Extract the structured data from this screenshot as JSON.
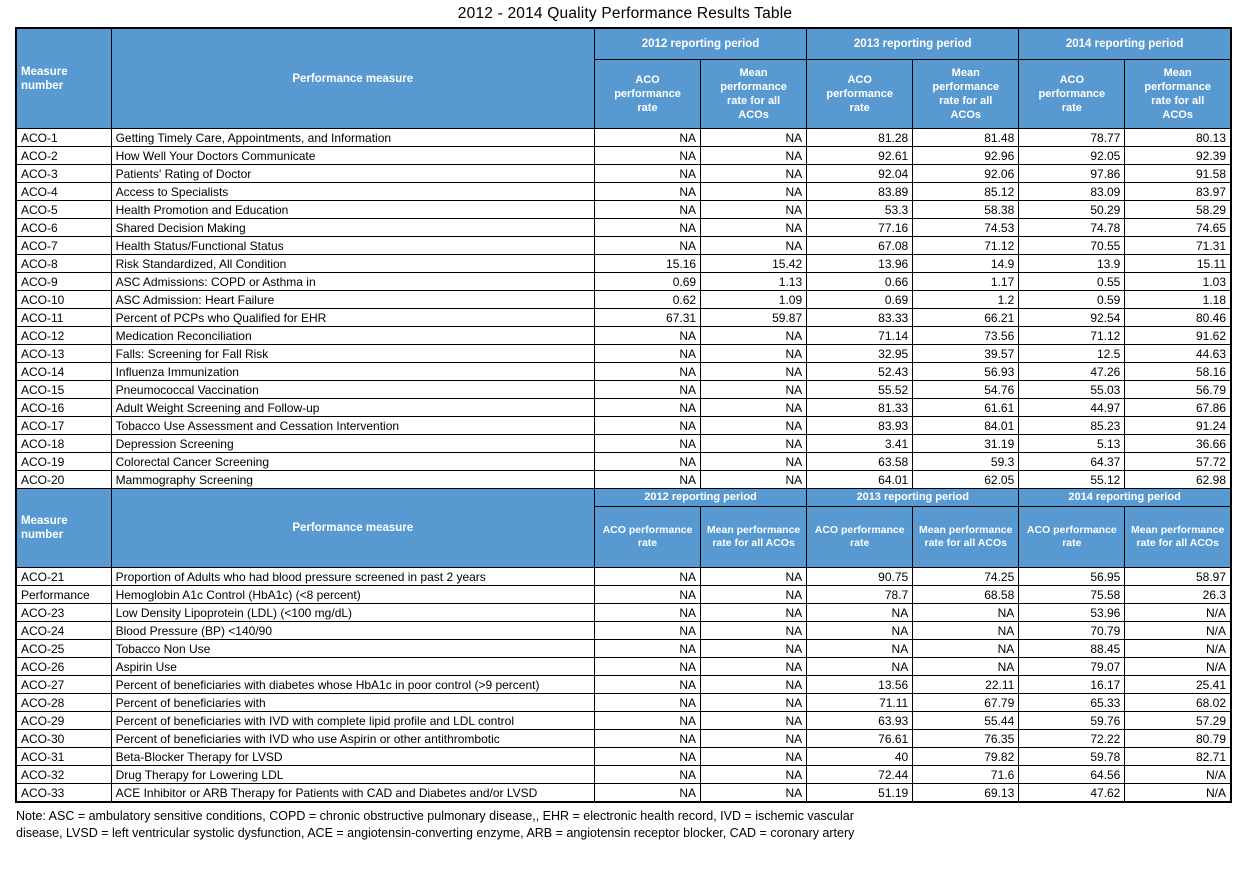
{
  "title": "2012 - 2014 Quality Performance Results Table",
  "colors": {
    "header_bg": "#5899d2",
    "header_text": "#ffffff",
    "border": "#000000"
  },
  "table": {
    "headers": {
      "measure_number": "Measure number",
      "performance_measure": "Performance measure",
      "periods": [
        "2012 reporting period",
        "2013 reporting period",
        "2014 reporting period"
      ],
      "sub_columns": [
        "ACO performance rate",
        "Mean performance rate for all ACOs"
      ]
    },
    "section1_rows": [
      {
        "number": "ACO-1",
        "measure": "Getting Timely Care, Appointments, and Information",
        "values": [
          "NA",
          "NA",
          "81.28",
          "81.48",
          "78.77",
          "80.13"
        ]
      },
      {
        "number": "ACO-2",
        "measure": "How Well Your Doctors Communicate",
        "values": [
          "NA",
          "NA",
          "92.61",
          "92.96",
          "92.05",
          "92.39"
        ]
      },
      {
        "number": "ACO-3",
        "measure": "Patients' Rating of Doctor",
        "values": [
          "NA",
          "NA",
          "92.04",
          "92.06",
          "97.86",
          "91.58"
        ]
      },
      {
        "number": "ACO-4",
        "measure": "Access to Specialists",
        "values": [
          "NA",
          "NA",
          "83.89",
          "85.12",
          "83.09",
          "83.97"
        ]
      },
      {
        "number": "ACO-5",
        "measure": "Health Promotion and Education",
        "values": [
          "NA",
          "NA",
          "53.3",
          "58.38",
          "50.29",
          "58.29"
        ]
      },
      {
        "number": "ACO-6",
        "measure": "Shared Decision Making",
        "values": [
          "NA",
          "NA",
          "77.16",
          "74.53",
          "74.78",
          "74.65"
        ]
      },
      {
        "number": "ACO-7",
        "measure": "Health Status/Functional Status",
        "values": [
          "NA",
          "NA",
          "67.08",
          "71.12",
          "70.55",
          "71.31"
        ]
      },
      {
        "number": "ACO-8",
        "measure": "Risk Standardized, All Condition",
        "values": [
          "15.16",
          "15.42",
          "13.96",
          "14.9",
          "13.9",
          "15.11"
        ]
      },
      {
        "number": "ACO-9",
        "measure": "ASC Admissions: COPD or Asthma in",
        "values": [
          "0.69",
          "1.13",
          "0.66",
          "1.17",
          "0.55",
          "1.03"
        ]
      },
      {
        "number": "ACO-10",
        "measure": "ASC Admission: Heart Failure",
        "values": [
          "0.62",
          "1.09",
          "0.69",
          "1.2",
          "0.59",
          "1.18"
        ]
      },
      {
        "number": "ACO-11",
        "measure": "Percent of PCPs who Qualified for EHR",
        "values": [
          "67.31",
          "59.87",
          "83.33",
          "66.21",
          "92.54",
          "80.46"
        ]
      },
      {
        "number": "ACO-12",
        "measure": "Medication Reconciliation",
        "values": [
          "NA",
          "NA",
          "71.14",
          "73.56",
          "71.12",
          "91.62"
        ]
      },
      {
        "number": "ACO-13",
        "measure": "Falls: Screening for Fall Risk",
        "values": [
          "NA",
          "NA",
          "32.95",
          "39.57",
          "12.5",
          "44.63"
        ]
      },
      {
        "number": "ACO-14",
        "measure": "Influenza Immunization",
        "values": [
          "NA",
          "NA",
          "52.43",
          "56.93",
          "47.26",
          "58.16"
        ]
      },
      {
        "number": "ACO-15",
        "measure": "Pneumococcal Vaccination",
        "values": [
          "NA",
          "NA",
          "55.52",
          "54.76",
          "55.03",
          "56.79"
        ]
      },
      {
        "number": "ACO-16",
        "measure": "Adult Weight Screening and Follow-up",
        "values": [
          "NA",
          "NA",
          "81.33",
          "61.61",
          "44.97",
          "67.86"
        ]
      },
      {
        "number": "ACO-17",
        "measure": "Tobacco Use Assessment and Cessation Intervention",
        "values": [
          "NA",
          "NA",
          "83.93",
          "84.01",
          "85.23",
          "91.24"
        ]
      },
      {
        "number": "ACO-18",
        "measure": "Depression Screening",
        "values": [
          "NA",
          "NA",
          "3.41",
          "31.19",
          "5.13",
          "36.66"
        ]
      },
      {
        "number": "ACO-19",
        "measure": "Colorectal Cancer Screening",
        "values": [
          "NA",
          "NA",
          "63.58",
          "59.3",
          "64.37",
          "57.72"
        ]
      },
      {
        "number": "ACO-20",
        "measure": "Mammography Screening",
        "values": [
          "NA",
          "NA",
          "64.01",
          "62.05",
          "55.12",
          "62.98"
        ]
      }
    ],
    "section2_rows": [
      {
        "number": "ACO-21",
        "measure": "Proportion of Adults who had blood pressure screened in past 2 years",
        "values": [
          "NA",
          "NA",
          "90.75",
          "74.25",
          "56.95",
          "58.97"
        ]
      },
      {
        "number": "Performance",
        "measure": "Hemoglobin A1c Control (HbA1c) (<8 percent)",
        "values": [
          "NA",
          "NA",
          "78.7",
          "68.58",
          "75.58",
          "26.3"
        ]
      },
      {
        "number": "ACO-23",
        "measure": "Low Density Lipoprotein (LDL) (<100 mg/dL)",
        "values": [
          "NA",
          "NA",
          "NA",
          "NA",
          "53.96",
          "N/A"
        ]
      },
      {
        "number": "ACO-24",
        "measure": "Blood Pressure (BP) <140/90",
        "values": [
          "NA",
          "NA",
          "NA",
          "NA",
          "70.79",
          "N/A"
        ]
      },
      {
        "number": "ACO-25",
        "measure": "Tobacco Non Use",
        "values": [
          "NA",
          "NA",
          "NA",
          "NA",
          "88.45",
          "N/A"
        ]
      },
      {
        "number": "ACO-26",
        "measure": "Aspirin Use",
        "values": [
          "NA",
          "NA",
          "NA",
          "NA",
          "79.07",
          "N/A"
        ]
      },
      {
        "number": "ACO-27",
        "measure": "Percent of beneficiaries with diabetes whose HbA1c in poor control (>9 percent)",
        "values": [
          "NA",
          "NA",
          "13.56",
          "22.11",
          "16.17",
          "25.41"
        ]
      },
      {
        "number": "ACO-28",
        "measure": "Percent of beneficiaries with",
        "values": [
          "NA",
          "NA",
          "71.11",
          "67.79",
          "65.33",
          "68.02"
        ]
      },
      {
        "number": "ACO-29",
        "measure": "Percent of beneficiaries with IVD with complete lipid profile and LDL control",
        "values": [
          "NA",
          "NA",
          "63.93",
          "55.44",
          "59.76",
          "57.29"
        ]
      },
      {
        "number": "ACO-30",
        "measure": "Percent of beneficiaries with IVD who use Aspirin or other antithrombotic",
        "values": [
          "NA",
          "NA",
          "76.61",
          "76.35",
          "72.22",
          "80.79"
        ]
      },
      {
        "number": "ACO-31",
        "measure": "Beta-Blocker Therapy for LVSD",
        "values": [
          "NA",
          "NA",
          "40",
          "79.82",
          "59.78",
          "82.71"
        ]
      },
      {
        "number": "ACO-32",
        "measure": "Drug Therapy for Lowering LDL",
        "values": [
          "NA",
          "NA",
          "72.44",
          "71.6",
          "64.56",
          "N/A"
        ]
      },
      {
        "number": "ACO-33",
        "measure": "ACE Inhibitor or ARB Therapy for Patients with CAD and Diabetes and/or LVSD",
        "values": [
          "NA",
          "NA",
          "51.19",
          "69.13",
          "47.62",
          "N/A"
        ]
      }
    ]
  },
  "note_lines": [
    "Note: ASC = ambulatory sensitive conditions, COPD = chronic obstructive pulmonary disease,, EHR = electronic health record, IVD = ischemic vascular",
    "disease, LVSD = left ventricular systolic dysfunction, ACE = angiotensin-converting enzyme, ARB = angiotensin receptor blocker, CAD = coronary artery"
  ]
}
